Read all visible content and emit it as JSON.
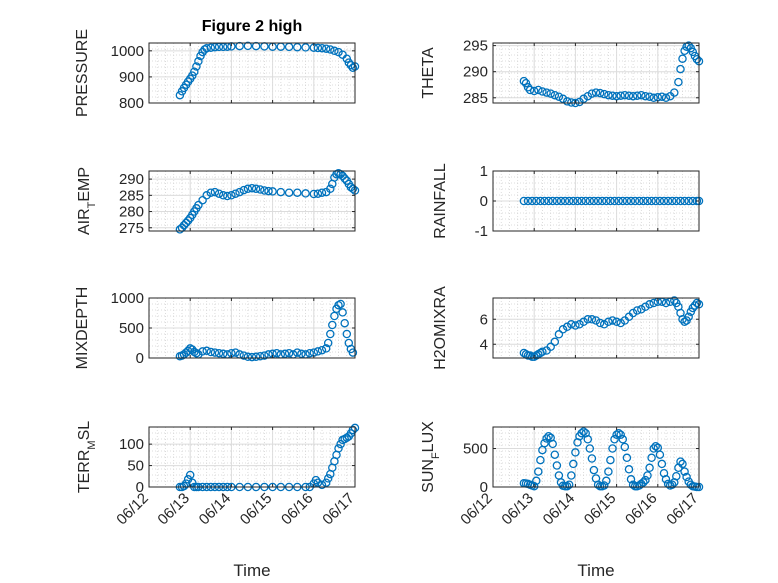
{
  "figure": {
    "background": "#ffffff",
    "marker_color": "#0072bd",
    "axes_color": "#262626"
  },
  "chart_data": [
    {
      "type": "scatter",
      "title": "Figure 2 high",
      "ylabel": "PRESSURE",
      "xlabel": "",
      "xlim": [
        0,
        5
      ],
      "ylim": [
        800,
        1030
      ],
      "yticks": [
        800,
        900,
        1000
      ],
      "grid": true,
      "x": [
        0.75,
        0.8,
        0.85,
        0.9,
        0.95,
        1.0,
        1.05,
        1.1,
        1.15,
        1.2,
        1.25,
        1.3,
        1.35,
        1.4,
        1.5,
        1.6,
        1.7,
        1.8,
        1.9,
        2.0,
        2.2,
        2.4,
        2.6,
        2.8,
        3.0,
        3.2,
        3.4,
        3.6,
        3.8,
        4.0,
        4.1,
        4.2,
        4.3,
        4.4,
        4.5,
        4.6,
        4.7,
        4.8,
        4.85,
        4.9,
        4.95,
        5.0
      ],
      "y": [
        830,
        845,
        858,
        870,
        882,
        893,
        905,
        920,
        940,
        960,
        980,
        995,
        1005,
        1010,
        1012,
        1014,
        1015,
        1015,
        1016,
        1017,
        1018,
        1019,
        1018,
        1017,
        1016,
        1016,
        1015,
        1014,
        1013,
        1012,
        1011,
        1010,
        1008,
        1005,
        1000,
        995,
        985,
        970,
        955,
        945,
        935,
        940
      ]
    },
    {
      "type": "scatter",
      "ylabel": "THETA",
      "xlabel": "",
      "xlim": [
        0,
        5
      ],
      "ylim": [
        284,
        295.5
      ],
      "yticks": [
        285,
        290,
        295
      ],
      "grid": true,
      "x": [
        0.75,
        0.8,
        0.85,
        0.9,
        1.0,
        1.1,
        1.2,
        1.3,
        1.4,
        1.5,
        1.6,
        1.7,
        1.8,
        1.9,
        2.0,
        2.1,
        2.2,
        2.3,
        2.4,
        2.5,
        2.6,
        2.7,
        2.8,
        2.9,
        3.0,
        3.1,
        3.2,
        3.3,
        3.4,
        3.5,
        3.6,
        3.7,
        3.8,
        3.9,
        4.0,
        4.1,
        4.2,
        4.3,
        4.4,
        4.5,
        4.55,
        4.6,
        4.65,
        4.7,
        4.75,
        4.8,
        4.85,
        4.9,
        4.95,
        5.0
      ],
      "y": [
        288.2,
        287.8,
        287.0,
        286.5,
        286.3,
        286.5,
        286.2,
        286.0,
        285.8,
        285.5,
        285.2,
        284.8,
        284.3,
        284.1,
        284.0,
        284.2,
        284.8,
        285.3,
        285.8,
        286.0,
        285.9,
        285.7,
        285.5,
        285.4,
        285.3,
        285.4,
        285.5,
        285.4,
        285.3,
        285.4,
        285.5,
        285.3,
        285.2,
        285.0,
        285.1,
        285.2,
        285.0,
        285.3,
        286.0,
        288.0,
        290.5,
        292.5,
        294.0,
        294.8,
        295.0,
        294.5,
        293.8,
        293.0,
        292.4,
        292.0
      ]
    },
    {
      "type": "scatter",
      "ylabel": "AIR_TEMP",
      "xlabel": "",
      "xlim": [
        0,
        5
      ],
      "ylim": [
        274,
        292.5
      ],
      "yticks": [
        275,
        280,
        285,
        290
      ],
      "grid": true,
      "x": [
        0.75,
        0.8,
        0.85,
        0.9,
        0.95,
        1.0,
        1.05,
        1.1,
        1.15,
        1.2,
        1.3,
        1.4,
        1.5,
        1.6,
        1.7,
        1.8,
        1.9,
        2.0,
        2.1,
        2.2,
        2.3,
        2.4,
        2.5,
        2.6,
        2.7,
        2.8,
        2.9,
        3.0,
        3.2,
        3.4,
        3.6,
        3.8,
        4.0,
        4.1,
        4.2,
        4.3,
        4.4,
        4.45,
        4.5,
        4.55,
        4.6,
        4.65,
        4.7,
        4.75,
        4.8,
        4.85,
        4.9,
        4.95,
        5.0
      ],
      "y": [
        274.5,
        275.0,
        275.8,
        276.5,
        277.2,
        278.0,
        279.0,
        280.0,
        281.0,
        282.0,
        283.5,
        285.0,
        285.8,
        286.0,
        285.5,
        285.0,
        284.8,
        285.0,
        285.5,
        286.0,
        286.6,
        287.0,
        287.2,
        287.0,
        286.8,
        286.5,
        286.3,
        286.2,
        286.0,
        285.8,
        285.8,
        285.6,
        285.4,
        285.5,
        285.8,
        286.0,
        287.0,
        288.5,
        290.5,
        291.5,
        291.8,
        291.5,
        291.0,
        290.2,
        289.5,
        288.5,
        287.5,
        287.0,
        286.5
      ]
    },
    {
      "type": "scatter",
      "ylabel": "RAINFALL",
      "xlabel": "",
      "xlim": [
        0,
        5
      ],
      "ylim": [
        -1,
        1
      ],
      "yticks": [
        -1,
        0,
        1
      ],
      "grid": true,
      "x": [
        0.75,
        0.85,
        0.95,
        1.05,
        1.15,
        1.25,
        1.35,
        1.45,
        1.55,
        1.65,
        1.75,
        1.85,
        1.95,
        2.05,
        2.15,
        2.25,
        2.35,
        2.45,
        2.55,
        2.65,
        2.75,
        2.85,
        2.95,
        3.05,
        3.15,
        3.25,
        3.35,
        3.45,
        3.55,
        3.65,
        3.75,
        3.85,
        3.95,
        4.05,
        4.15,
        4.25,
        4.35,
        4.45,
        4.55,
        4.65,
        4.75,
        4.85,
        4.95,
        5.0
      ],
      "y": [
        0,
        0,
        0,
        0,
        0,
        0,
        0,
        0,
        0,
        0,
        0,
        0,
        0,
        0,
        0,
        0,
        0,
        0,
        0,
        0,
        0,
        0,
        0,
        0,
        0,
        0,
        0,
        0,
        0,
        0,
        0,
        0,
        0,
        0,
        0,
        0,
        0,
        0,
        0,
        0,
        0,
        0,
        0,
        0
      ]
    },
    {
      "type": "scatter",
      "ylabel": "MIXDEPTH",
      "xlabel": "",
      "xlim": [
        0,
        5
      ],
      "ylim": [
        0,
        1000
      ],
      "yticks": [
        0,
        500,
        1000
      ],
      "grid": true,
      "x": [
        0.75,
        0.8,
        0.85,
        0.9,
        0.95,
        1.0,
        1.05,
        1.1,
        1.15,
        1.2,
        1.3,
        1.4,
        1.5,
        1.6,
        1.7,
        1.8,
        1.9,
        2.0,
        2.1,
        2.2,
        2.3,
        2.4,
        2.5,
        2.6,
        2.7,
        2.8,
        2.9,
        3.0,
        3.1,
        3.2,
        3.3,
        3.4,
        3.5,
        3.6,
        3.7,
        3.8,
        3.9,
        4.0,
        4.1,
        4.2,
        4.3,
        4.35,
        4.4,
        4.45,
        4.5,
        4.55,
        4.6,
        4.65,
        4.7,
        4.75,
        4.8,
        4.85,
        4.9,
        4.95
      ],
      "y": [
        30,
        40,
        60,
        90,
        120,
        160,
        140,
        100,
        80,
        60,
        110,
        120,
        100,
        90,
        80,
        70,
        60,
        80,
        90,
        60,
        40,
        20,
        15,
        20,
        30,
        40,
        60,
        70,
        80,
        60,
        70,
        80,
        60,
        90,
        70,
        60,
        80,
        90,
        110,
        130,
        160,
        250,
        400,
        550,
        700,
        820,
        880,
        900,
        760,
        580,
        400,
        250,
        150,
        90
      ]
    },
    {
      "type": "scatter",
      "ylabel": "H2OMIXRA",
      "xlabel": "",
      "xlim": [
        0,
        5
      ],
      "ylim": [
        2.9,
        7.7
      ],
      "yticks": [
        4,
        6
      ],
      "grid": true,
      "x": [
        0.75,
        0.8,
        0.85,
        0.9,
        0.95,
        1.0,
        1.05,
        1.1,
        1.15,
        1.2,
        1.3,
        1.4,
        1.5,
        1.6,
        1.7,
        1.8,
        1.9,
        2.0,
        2.1,
        2.2,
        2.3,
        2.4,
        2.5,
        2.6,
        2.7,
        2.8,
        2.9,
        3.0,
        3.1,
        3.2,
        3.3,
        3.4,
        3.5,
        3.6,
        3.7,
        3.8,
        3.9,
        4.0,
        4.1,
        4.2,
        4.3,
        4.4,
        4.45,
        4.5,
        4.55,
        4.6,
        4.65,
        4.7,
        4.75,
        4.8,
        4.85,
        4.9,
        4.95,
        5.0
      ],
      "y": [
        3.3,
        3.2,
        3.1,
        3.1,
        3.0,
        3.0,
        3.1,
        3.2,
        3.3,
        3.4,
        3.5,
        3.8,
        4.2,
        4.8,
        5.2,
        5.4,
        5.6,
        5.5,
        5.6,
        5.8,
        6.0,
        6.0,
        5.9,
        5.7,
        5.6,
        5.8,
        5.9,
        5.8,
        5.7,
        5.9,
        6.2,
        6.5,
        6.7,
        6.8,
        7.0,
        7.2,
        7.3,
        7.4,
        7.4,
        7.3,
        7.4,
        7.5,
        7.3,
        7.0,
        6.5,
        6.0,
        5.8,
        5.9,
        6.2,
        6.6,
        6.9,
        7.1,
        7.3,
        7.2
      ]
    },
    {
      "type": "scatter",
      "ylabel": "TERR_MSL",
      "xlabel": "Time",
      "xlim": [
        0,
        5
      ],
      "ylim": [
        0,
        140
      ],
      "yticks": [
        0,
        50,
        100
      ],
      "xticks": [
        "06/12",
        "06/13",
        "06/14",
        "06/15",
        "06/16",
        "06/17"
      ],
      "grid": true,
      "x": [
        0.75,
        0.8,
        0.85,
        0.9,
        0.95,
        1.0,
        1.05,
        1.1,
        1.15,
        1.2,
        1.3,
        1.4,
        1.5,
        1.6,
        1.7,
        1.8,
        1.9,
        2.0,
        2.2,
        2.4,
        2.6,
        2.8,
        3.0,
        3.2,
        3.4,
        3.6,
        3.8,
        3.9,
        4.0,
        4.05,
        4.1,
        4.2,
        4.3,
        4.35,
        4.4,
        4.45,
        4.5,
        4.55,
        4.6,
        4.65,
        4.7,
        4.75,
        4.8,
        4.85,
        4.9,
        4.95,
        5.0
      ],
      "y": [
        0,
        0,
        2,
        8,
        18,
        28,
        10,
        0,
        0,
        0,
        0,
        0,
        0,
        0,
        0,
        0,
        0,
        0,
        0,
        0,
        0,
        0,
        0,
        0,
        0,
        0,
        0,
        0,
        8,
        16,
        10,
        5,
        10,
        20,
        30,
        45,
        60,
        75,
        90,
        100,
        110,
        112,
        115,
        118,
        125,
        133,
        138
      ]
    },
    {
      "type": "scatter",
      "ylabel": "SUN_FLUX",
      "xlabel": "Time",
      "xlim": [
        0,
        5
      ],
      "ylim": [
        0,
        780
      ],
      "yticks": [
        0,
        500
      ],
      "xticks": [
        "06/12",
        "06/13",
        "06/14",
        "06/15",
        "06/16",
        "06/17"
      ],
      "grid": true,
      "x": [
        0.75,
        0.8,
        0.85,
        0.9,
        0.95,
        1.0,
        1.05,
        1.1,
        1.15,
        1.2,
        1.25,
        1.3,
        1.35,
        1.4,
        1.45,
        1.5,
        1.55,
        1.6,
        1.65,
        1.7,
        1.75,
        1.8,
        1.85,
        1.9,
        1.95,
        2.0,
        2.05,
        2.1,
        2.15,
        2.2,
        2.25,
        2.3,
        2.35,
        2.4,
        2.45,
        2.5,
        2.55,
        2.6,
        2.65,
        2.7,
        2.75,
        2.8,
        2.85,
        2.9,
        2.95,
        3.0,
        3.05,
        3.1,
        3.15,
        3.2,
        3.25,
        3.3,
        3.35,
        3.4,
        3.45,
        3.5,
        3.55,
        3.6,
        3.65,
        3.7,
        3.75,
        3.8,
        3.85,
        3.9,
        3.95,
        4.0,
        4.05,
        4.1,
        4.15,
        4.2,
        4.25,
        4.3,
        4.35,
        4.4,
        4.45,
        4.5,
        4.55,
        4.6,
        4.65,
        4.7,
        4.75,
        4.8,
        4.85,
        4.9,
        4.95,
        5.0
      ],
      "y": [
        50,
        45,
        40,
        30,
        20,
        10,
        80,
        200,
        350,
        480,
        570,
        630,
        660,
        640,
        560,
        420,
        280,
        150,
        60,
        15,
        10,
        10,
        30,
        150,
        300,
        450,
        580,
        660,
        700,
        720,
        700,
        620,
        500,
        370,
        220,
        110,
        30,
        10,
        10,
        20,
        80,
        200,
        350,
        500,
        620,
        680,
        700,
        680,
        620,
        520,
        380,
        230,
        100,
        30,
        10,
        10,
        20,
        40,
        60,
        90,
        150,
        250,
        380,
        500,
        530,
        510,
        420,
        300,
        180,
        100,
        40,
        20,
        30,
        60,
        140,
        250,
        330,
        300,
        200,
        130,
        70,
        30,
        10,
        5,
        0,
        0
      ]
    }
  ]
}
